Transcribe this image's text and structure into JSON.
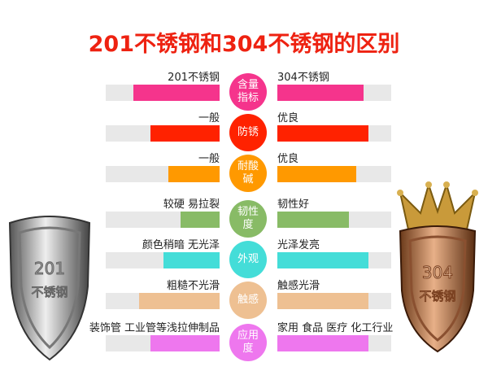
{
  "title": "201不锈钢和304不锈钢的区别",
  "rows": [
    {
      "label": "含量指标",
      "color": "#f5348c",
      "left_text": "201不锈钢",
      "left_fill": 0.76,
      "right_text": "304不锈钢",
      "right_fill": 0.76
    },
    {
      "label": "防锈",
      "color": "#ff2200",
      "left_text": "一般",
      "left_fill": 0.61,
      "right_text": "优良",
      "right_fill": 0.8
    },
    {
      "label": "耐酸碱",
      "color": "#ff9900",
      "left_text": "一般",
      "left_fill": 0.45,
      "right_text": "优良",
      "right_fill": 0.69
    },
    {
      "label": "韧性度",
      "color": "#88bb66",
      "left_text": "较硬 易拉裂",
      "left_fill": 0.34,
      "right_text": "韧性好",
      "right_fill": 0.63
    },
    {
      "label": "外观",
      "color": "#44ddd8",
      "left_text": "颜色稍暗 无光泽",
      "left_fill": 0.49,
      "right_text": "光泽发亮",
      "right_fill": 0.8
    },
    {
      "label": "触感",
      "color": "#eec092",
      "left_text": "粗糙不光滑",
      "left_fill": 0.71,
      "right_text": "触感光滑",
      "right_fill": 0.8
    },
    {
      "label": "应用度",
      "color": "#ee77ee",
      "left_text": "装饰管 工业管等浅拉伸制品",
      "left_fill": 0.61,
      "right_text": "家用 食品 医疗 化工行业",
      "right_fill": 0.8
    }
  ],
  "shields": {
    "left": {
      "line1": "201",
      "line2": "不锈钢"
    },
    "right": {
      "line1": "304",
      "line2": "不锈钢"
    }
  }
}
